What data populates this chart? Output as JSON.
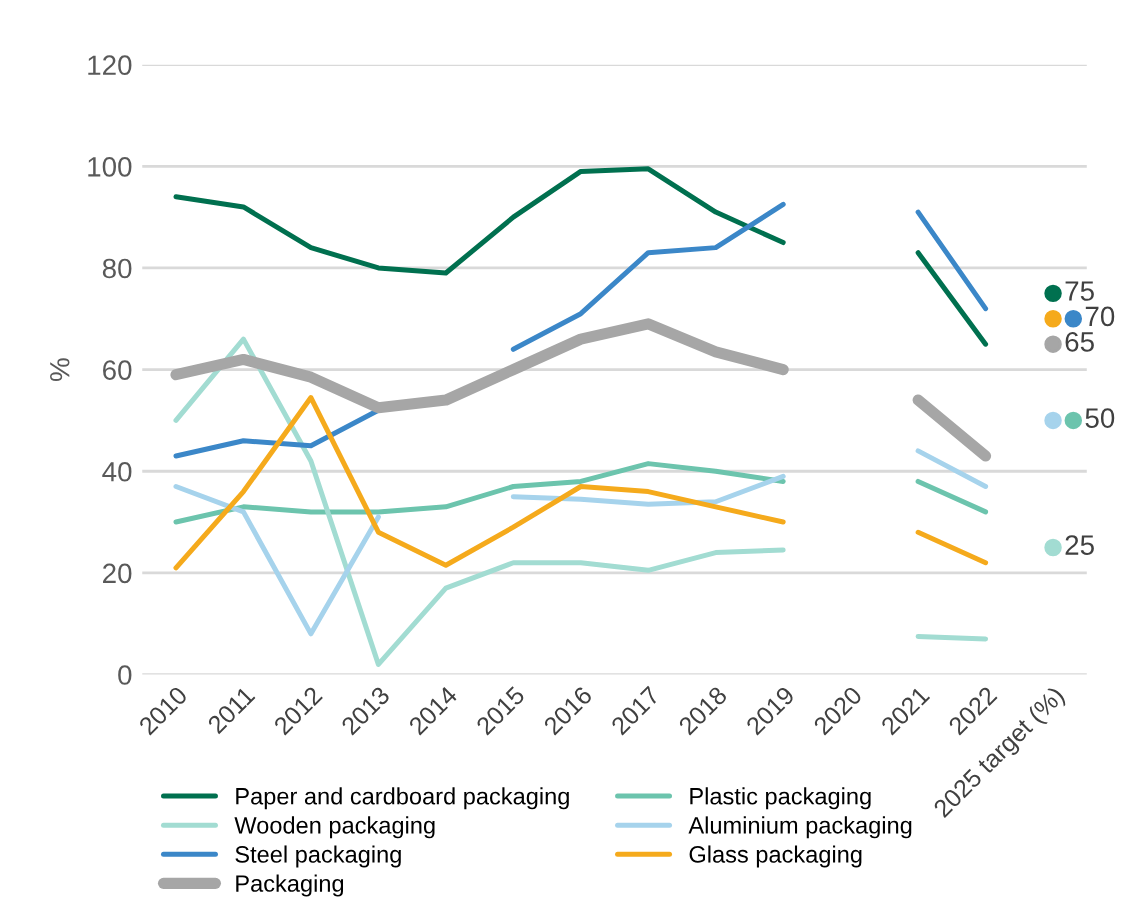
{
  "chart_data": {
    "type": "line",
    "ylabel": "%",
    "categories": [
      "2010",
      "2011",
      "2012",
      "2013",
      "2014",
      "2015",
      "2016",
      "2017",
      "2018",
      "2019",
      "2020",
      "2021",
      "2022",
      "2025 target (%)"
    ],
    "ylim": [
      0,
      120
    ],
    "yticks": [
      0,
      20,
      40,
      60,
      80,
      100,
      120
    ],
    "grid": "y",
    "legend": "bottom",
    "marker": "none",
    "series": [
      {
        "name": "Paper and cardboard packaging",
        "color": "#00704f",
        "values": [
          94,
          92,
          84,
          80,
          79,
          90,
          99,
          99.5,
          91,
          85,
          null,
          83,
          65,
          null
        ]
      },
      {
        "name": "Plastic packaging",
        "color": "#6cc4ad",
        "values": [
          30,
          33,
          32,
          32,
          33,
          37,
          38,
          41.5,
          40,
          38,
          null,
          38,
          32,
          null
        ]
      },
      {
        "name": "Wooden packaging",
        "color": "#a2dcd2",
        "values": [
          50,
          66,
          42,
          2,
          17,
          22,
          22,
          20.5,
          24,
          24.5,
          null,
          7.5,
          7,
          null
        ]
      },
      {
        "name": "Aluminium packaging",
        "color": "#a6d3ec",
        "values": [
          37,
          32,
          8,
          31,
          null,
          35,
          34.5,
          33.5,
          34,
          39,
          null,
          44,
          37,
          null
        ]
      },
      {
        "name": "Steel packaging",
        "color": "#3b87c8",
        "values": [
          43,
          46,
          45,
          52,
          null,
          64,
          71,
          83,
          84,
          92.5,
          null,
          91,
          72,
          null
        ]
      },
      {
        "name": "Glass packaging",
        "color": "#f5aa1c",
        "values": [
          21,
          36,
          54.5,
          28,
          21.5,
          29,
          37,
          36,
          33,
          30,
          null,
          28,
          22,
          null
        ]
      },
      {
        "name": "Packaging",
        "color": "#a6a6a6",
        "values": [
          59,
          62,
          58.5,
          52.5,
          54,
          60,
          66,
          69,
          63.5,
          60,
          null,
          54,
          43,
          null
        ]
      },
      {
        "type": "scatter",
        "marker": "circle",
        "x": [
          "2025 target (%)",
          "2025 target (%)",
          "2025 target (%)",
          "2025 target (%)",
          "2025 target (%)",
          "2025 target (%)",
          "2025 target (%)"
        ],
        "values": [
          75,
          70,
          70,
          65,
          50,
          50,
          25
        ],
        "colors": [
          "#00704f",
          "#f5aa1c",
          "#3b87c8",
          "#a6a6a6",
          "#a6d3ec",
          "#6cc4ad",
          "#a2dcd2"
        ],
        "value_labels": [
          "75",
          null,
          "70",
          "65",
          null,
          "50",
          "25"
        ]
      }
    ]
  }
}
